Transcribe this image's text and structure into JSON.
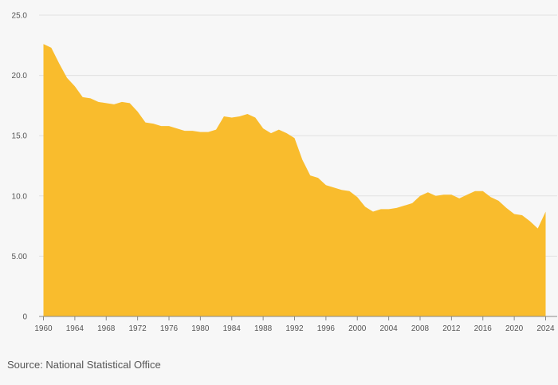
{
  "source": "Source: National Statistical Office",
  "colors": {
    "area": "#f9bc2d",
    "grid": "#e2e2e2",
    "axis": "#888888",
    "background": "#f7f7f7"
  },
  "chart_data": {
    "type": "area",
    "title": "",
    "xlabel": "",
    "ylabel": "",
    "xlim": [
      1959,
      2024.5
    ],
    "ylim": [
      0,
      25
    ],
    "grid": true,
    "legend": "none",
    "y_ticks": [
      0,
      5,
      10,
      15,
      20,
      25
    ],
    "y_tick_labels": [
      "0",
      "5.00",
      "10.0",
      "15.0",
      "20.0",
      "25.0"
    ],
    "x_ticks": [
      1960,
      1964,
      1968,
      1972,
      1976,
      1980,
      1984,
      1988,
      1992,
      1996,
      2000,
      2004,
      2008,
      2012,
      2016,
      2020,
      2024
    ],
    "x_tick_labels": [
      "1960",
      "1964",
      "1968",
      "1972",
      "1976",
      "1980",
      "1984",
      "1988",
      "1992",
      "1996",
      "2000",
      "2004",
      "2008",
      "2012",
      "2016",
      "2020",
      "2024"
    ],
    "series": [
      {
        "x": [
          1960,
          1961,
          1962,
          1963,
          1964,
          1965,
          1966,
          1967,
          1968,
          1969,
          1970,
          1971,
          1972,
          1973,
          1974,
          1975,
          1976,
          1977,
          1978,
          1979,
          1980,
          1981,
          1982,
          1983,
          1984,
          1985,
          1986,
          1987,
          1988,
          1989,
          1990,
          1991,
          1992,
          1993,
          1994,
          1995,
          1996,
          1997,
          1998,
          1999,
          2000,
          2001,
          2002,
          2003,
          2004,
          2005,
          2006,
          2007,
          2008,
          2009,
          2010,
          2011,
          2012,
          2013,
          2014,
          2015,
          2016,
          2017,
          2018,
          2019,
          2020,
          2021,
          2022,
          2023,
          2024
        ],
        "values": [
          22.6,
          22.3,
          21.0,
          19.8,
          19.1,
          18.2,
          18.1,
          17.8,
          17.7,
          17.6,
          17.8,
          17.7,
          17.0,
          16.1,
          16.0,
          15.8,
          15.8,
          15.6,
          15.4,
          15.4,
          15.3,
          15.3,
          15.5,
          16.6,
          16.5,
          16.6,
          16.8,
          16.5,
          15.6,
          15.2,
          15.5,
          15.2,
          14.8,
          13.0,
          11.7,
          11.5,
          10.9,
          10.7,
          10.5,
          10.4,
          9.9,
          9.1,
          8.7,
          8.9,
          8.9,
          9.0,
          9.2,
          9.4,
          10.0,
          10.3,
          10.0,
          10.1,
          10.1,
          9.8,
          10.1,
          10.4,
          10.4,
          9.9,
          9.6,
          9.0,
          8.5,
          8.4,
          7.9,
          7.3,
          8.7
        ]
      }
    ]
  }
}
